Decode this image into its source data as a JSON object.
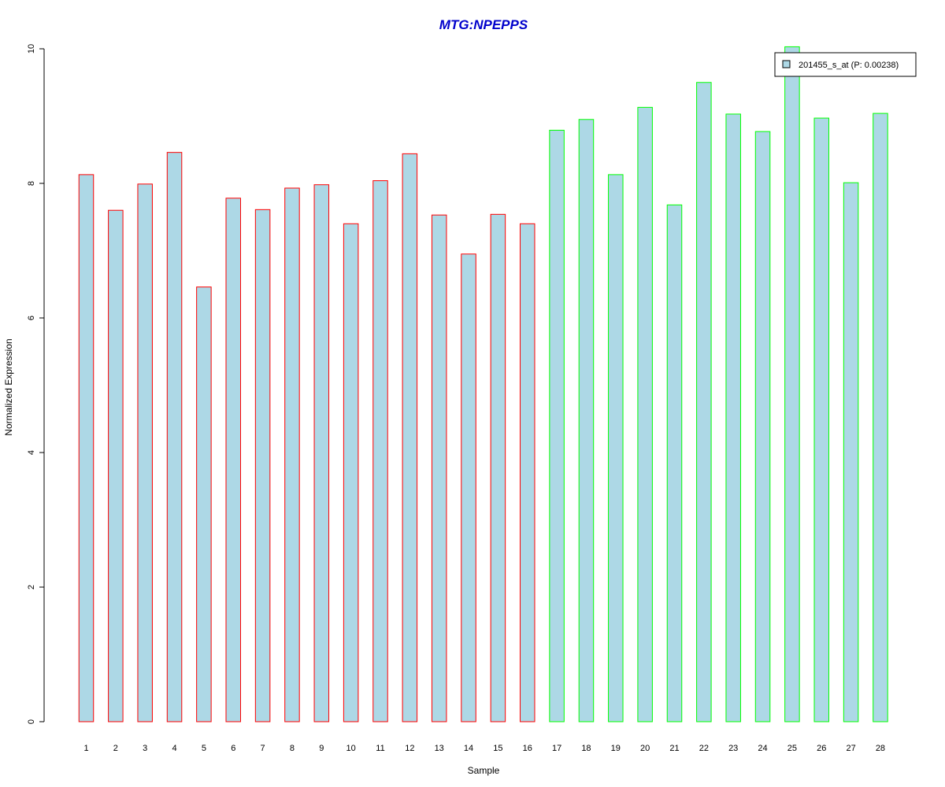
{
  "colors": {
    "bar_fill": "#add8e6",
    "group1_border": "#ff0000",
    "group2_border": "#00ff00",
    "title": "#0000cc"
  },
  "chart_data": {
    "type": "bar",
    "title": "MTG:NPEPPS",
    "xlabel": "Sample",
    "ylabel": "Normalized Expression",
    "ylim": [
      0,
      10
    ],
    "yticks": [
      0,
      2,
      4,
      6,
      8,
      10
    ],
    "categories": [
      "1",
      "2",
      "3",
      "4",
      "5",
      "6",
      "7",
      "8",
      "9",
      "10",
      "11",
      "12",
      "13",
      "14",
      "15",
      "16",
      "17",
      "18",
      "19",
      "20",
      "21",
      "22",
      "23",
      "24",
      "25",
      "26",
      "27",
      "28"
    ],
    "series": [
      {
        "name": "201455_s_at (P: 0.00238)",
        "values": [
          8.13,
          7.6,
          7.99,
          8.46,
          6.46,
          7.78,
          7.61,
          7.93,
          7.98,
          7.4,
          8.04,
          8.44,
          7.53,
          6.95,
          7.54,
          7.4,
          8.79,
          8.95,
          8.13,
          9.13,
          7.68,
          9.5,
          9.03,
          8.77,
          10.03,
          8.97,
          8.01,
          9.04
        ]
      }
    ],
    "groups": [
      {
        "from": 0,
        "to": 15,
        "border": "#ff0000"
      },
      {
        "from": 16,
        "to": 27,
        "border": "#00ff00"
      }
    ],
    "legend_position": "top-right",
    "grid": false
  }
}
